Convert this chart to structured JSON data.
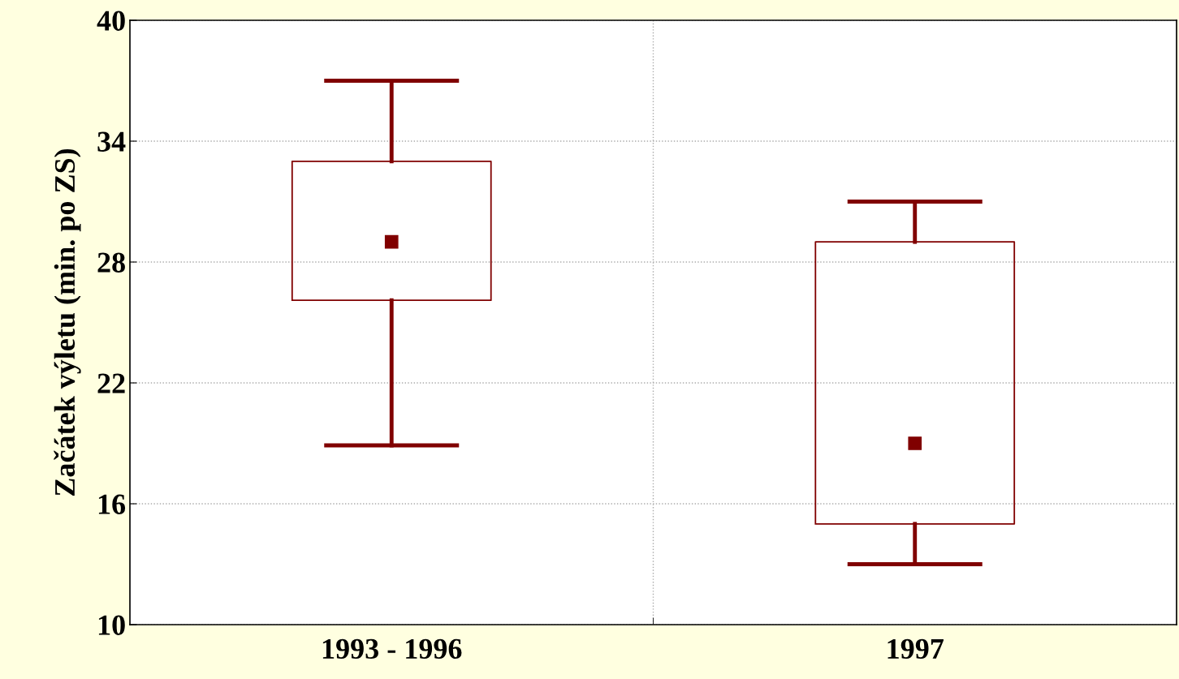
{
  "chart_data": {
    "type": "box",
    "ylabel": "Začátek výletu (min. po ZS)",
    "categories": [
      "1993 - 1996",
      "1997"
    ],
    "boxes": [
      {
        "low": 18.9,
        "q1": 26.1,
        "median": 29.0,
        "q3": 33.0,
        "high": 37.0
      },
      {
        "low": 13.0,
        "q1": 15.0,
        "median": 19.0,
        "q3": 29.0,
        "high": 31.0
      }
    ],
    "color": "#800000",
    "ylim": [
      10,
      40
    ],
    "yticks": [
      10,
      16,
      22,
      28,
      34,
      40
    ],
    "grid": true,
    "marker": "square"
  }
}
